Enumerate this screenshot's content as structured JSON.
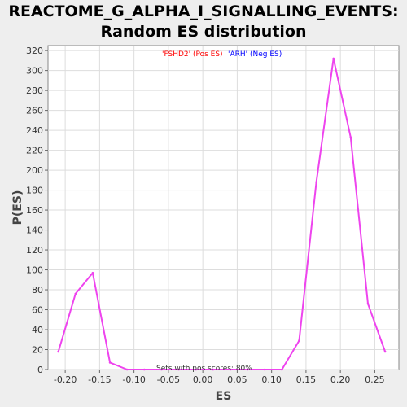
{
  "chart_data": {
    "type": "line",
    "title": [
      "REACTOME_G_ALPHA_I_SIGNALLING_EVENTS:",
      "Random ES distribution"
    ],
    "xlabel": "ES",
    "ylabel": "P(ES)",
    "xlim": [
      -0.225,
      0.285
    ],
    "ylim": [
      0,
      325
    ],
    "x_ticks": [
      "-0.20",
      "-0.15",
      "-0.10",
      "-0.05",
      "0.00",
      "0.05",
      "0.10",
      "0.15",
      "0.20",
      "0.25"
    ],
    "x_tick_values": [
      -0.2,
      -0.15,
      -0.1,
      -0.05,
      0.0,
      0.05,
      0.1,
      0.15,
      0.2,
      0.25
    ],
    "y_ticks": [
      0,
      20,
      40,
      60,
      80,
      100,
      120,
      140,
      160,
      180,
      200,
      220,
      240,
      260,
      280,
      300,
      320
    ],
    "grid": true,
    "series": [
      {
        "color": "#ee44ee",
        "x": [
          -0.21,
          -0.185,
          -0.16,
          -0.135,
          -0.11,
          -0.085,
          -0.06,
          -0.035,
          -0.01,
          0.015,
          0.04,
          0.065,
          0.09,
          0.115,
          0.14,
          0.165,
          0.19,
          0.215,
          0.24,
          0.265
        ],
        "y": [
          18,
          76,
          97,
          7,
          0,
          0,
          0,
          0,
          0,
          0,
          0,
          0,
          0,
          0,
          29,
          188,
          312,
          233,
          66,
          18
        ]
      }
    ],
    "legend": {
      "position": "top",
      "entries": [
        {
          "text": "'FSHD2' (Pos ES)",
          "color": "#ff0000"
        },
        {
          "text": "'ARH' (Neg ES)",
          "color": "#0000ff"
        }
      ]
    },
    "annotation": "Sets with pos scores: 80%"
  }
}
